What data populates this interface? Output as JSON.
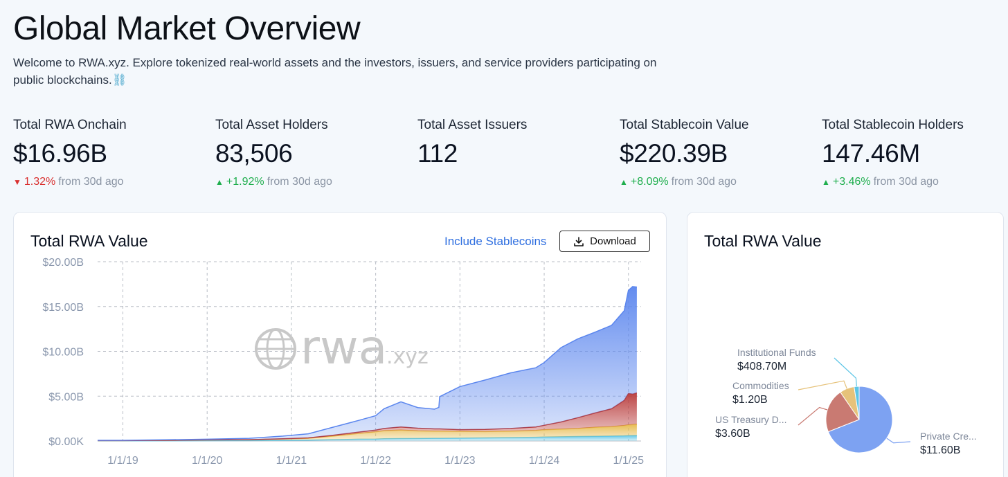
{
  "header": {
    "title": "Global Market Overview",
    "intro": "Welcome to RWA.xyz. Explore tokenized real-world assets and the investors, issuers, and service providers participating on public blockchains.",
    "intro_icon": "⛓"
  },
  "stats": [
    {
      "label": "Total RWA Onchain",
      "value": "$16.96B",
      "direction": "down",
      "arrow": "▼",
      "change": "1.32%",
      "suffix": "from 30d ago"
    },
    {
      "label": "Total Asset Holders",
      "value": "83,506",
      "direction": "up",
      "arrow": "▲",
      "change": "+1.92%",
      "suffix": "from 30d ago"
    },
    {
      "label": "Total Asset Issuers",
      "value": "112"
    },
    {
      "label": "Total Stablecoin Value",
      "value": "$220.39B",
      "direction": "up",
      "arrow": "▲",
      "change": "+8.09%",
      "suffix": "from 30d ago"
    },
    {
      "label": "Total Stablecoin Holders",
      "value": "147.46M",
      "direction": "up",
      "arrow": "▲",
      "change": "+3.46%",
      "suffix": "from 30d ago"
    }
  ],
  "area_card": {
    "title": "Total RWA Value",
    "toggle_label": "Include Stablecoins",
    "download_label": "Download",
    "watermark": {
      "main": "rwa",
      "suffix": ".xyz"
    }
  },
  "pie_card": {
    "title": "Total RWA Value"
  },
  "colors": {
    "blue": "#5b86ee",
    "red": "#b83a3a",
    "yellow": "#e6b94a",
    "cyan": "#5cc5e6",
    "up": "#1fae4d",
    "down": "#d9302f",
    "link": "#2f6fe0"
  },
  "chart_data": [
    {
      "type": "area",
      "title": "Total RWA Value",
      "stacked": true,
      "x_ticks": [
        "1/1/19",
        "1/1/20",
        "1/1/21",
        "1/1/22",
        "1/1/23",
        "1/1/24",
        "1/1/25"
      ],
      "x": [
        2018.7,
        2019.0,
        2019.5,
        2020.0,
        2020.5,
        2020.9,
        2021.2,
        2021.5,
        2021.8,
        2022.0,
        2022.1,
        2022.3,
        2022.5,
        2022.7,
        2022.75,
        2022.76,
        2023.0,
        2023.3,
        2023.6,
        2023.9,
        2024.0,
        2024.2,
        2024.4,
        2024.6,
        2024.8,
        2024.95,
        2025.0,
        2025.05,
        2025.1
      ],
      "series": [
        {
          "color": "#5cc5e6",
          "values": [
            0.02,
            0.02,
            0.03,
            0.04,
            0.05,
            0.08,
            0.1,
            0.15,
            0.2,
            0.22,
            0.25,
            0.27,
            0.28,
            0.3,
            0.3,
            0.3,
            0.32,
            0.35,
            0.38,
            0.42,
            0.45,
            0.47,
            0.5,
            0.52,
            0.55,
            0.58,
            0.6,
            0.61,
            0.62
          ]
        },
        {
          "color": "#e6b94a",
          "values": [
            0.03,
            0.03,
            0.05,
            0.08,
            0.1,
            0.15,
            0.2,
            0.4,
            0.65,
            0.8,
            0.9,
            0.95,
            0.85,
            0.8,
            0.8,
            0.8,
            0.75,
            0.7,
            0.72,
            0.75,
            0.8,
            0.85,
            0.9,
            1.0,
            1.05,
            1.15,
            1.2,
            1.22,
            1.25
          ]
        },
        {
          "color": "#b83a3a",
          "values": [
            0.0,
            0.0,
            0.0,
            0.0,
            0.0,
            0.02,
            0.05,
            0.1,
            0.15,
            0.2,
            0.25,
            0.35,
            0.3,
            0.25,
            0.25,
            0.25,
            0.2,
            0.25,
            0.3,
            0.4,
            0.5,
            0.8,
            1.2,
            1.6,
            2.0,
            2.8,
            3.5,
            3.4,
            3.5
          ]
        },
        {
          "color": "#5b86ee",
          "values": [
            0.03,
            0.03,
            0.05,
            0.08,
            0.15,
            0.3,
            0.45,
            0.9,
            1.3,
            1.6,
            2.2,
            2.8,
            2.3,
            2.2,
            2.4,
            3.6,
            4.8,
            5.5,
            6.2,
            6.6,
            7.0,
            8.3,
            8.8,
            9.0,
            9.3,
            10.0,
            11.5,
            12.0,
            11.8
          ]
        }
      ],
      "ylim": [
        0,
        20
      ],
      "y_ticks": [
        "$0.00K",
        "$5.00B",
        "$10.00B",
        "$15.00B",
        "$20.00B"
      ]
    },
    {
      "type": "pie",
      "slices": [
        {
          "label": "Private Cre...",
          "value": 11.6,
          "display": "$11.60B",
          "color": "#7da2f2"
        },
        {
          "label": "US Treasury D...",
          "value": 3.6,
          "display": "$3.60B",
          "color": "#c97a72"
        },
        {
          "label": "Commodities",
          "value": 1.2,
          "display": "$1.20B",
          "color": "#e6c27a"
        },
        {
          "label": "Institutional Funds",
          "value": 0.4087,
          "display": "$408.70M",
          "color": "#5cc5e6"
        }
      ]
    }
  ]
}
